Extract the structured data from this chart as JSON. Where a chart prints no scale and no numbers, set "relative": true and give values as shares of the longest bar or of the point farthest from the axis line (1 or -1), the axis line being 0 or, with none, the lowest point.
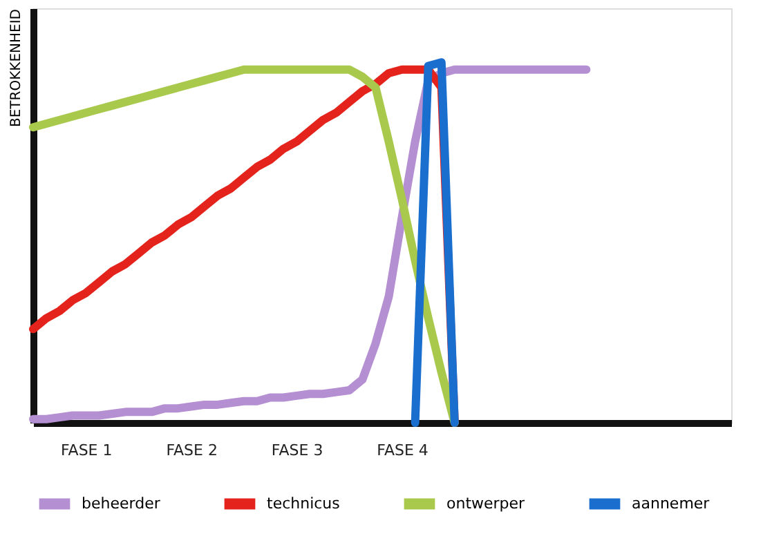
{
  "chart_data": {
    "type": "line",
    "relative": true,
    "ylabel": "BETROKKENHEID",
    "categories": [
      null,
      null,
      null,
      null,
      "FASE 1",
      null,
      null,
      null,
      null,
      null,
      null,
      null,
      "FASE 2",
      null,
      null,
      null,
      null,
      null,
      null,
      null,
      "FASE 3",
      null,
      null,
      null,
      null,
      null,
      null,
      null,
      "FASE 4",
      null,
      null,
      null,
      null,
      null,
      null,
      null,
      null,
      null,
      null,
      null,
      null,
      null,
      null,
      null,
      null,
      null,
      null,
      null,
      null,
      null,
      null,
      null,
      null,
      null
    ],
    "tick_labels": "x",
    "grid": false,
    "legend": "bottom",
    "marker": "none",
    "line_style": "solid",
    "series": [
      {
        "name": "beheerder",
        "color": "#b48fd2",
        "values": [
          0.01,
          0.01,
          0.015,
          0.02,
          0.02,
          0.02,
          0.025,
          0.03,
          0.03,
          0.03,
          0.04,
          0.04,
          0.045,
          0.05,
          0.05,
          0.055,
          0.06,
          0.06,
          0.07,
          0.07,
          0.075,
          0.08,
          0.08,
          0.085,
          0.09,
          0.12,
          0.22,
          0.35,
          0.57,
          0.78,
          0.95,
          0.97,
          0.98,
          0.98,
          0.98,
          0.98,
          0.98,
          0.98,
          0.98,
          0.98,
          0.98,
          0.98,
          0.98,
          null,
          null,
          null,
          null,
          null,
          null,
          null,
          null,
          null,
          null,
          null
        ]
      },
      {
        "name": "technicus",
        "color": "#e3231c",
        "values": [
          0.26,
          0.29,
          0.31,
          0.34,
          0.36,
          0.39,
          0.42,
          0.44,
          0.47,
          0.5,
          0.52,
          0.55,
          0.57,
          0.6,
          0.63,
          0.65,
          0.68,
          0.71,
          0.73,
          0.76,
          0.78,
          0.81,
          0.84,
          0.86,
          0.89,
          0.92,
          0.94,
          0.97,
          0.98,
          0.98,
          0.98,
          0.93,
          0,
          null,
          null,
          null,
          null,
          null,
          null,
          null,
          null,
          null,
          null,
          null,
          null,
          null,
          null,
          null,
          null,
          null,
          null,
          null,
          null,
          null
        ]
      },
      {
        "name": "ontwerper",
        "color": "#a9c94c",
        "values": [
          0.82,
          0.83,
          0.84,
          0.85,
          0.86,
          0.87,
          0.88,
          0.89,
          0.9,
          0.91,
          0.92,
          0.93,
          0.94,
          0.95,
          0.96,
          0.97,
          0.98,
          0.98,
          0.98,
          0.98,
          0.98,
          0.98,
          0.98,
          0.98,
          0.98,
          0.96,
          0.93,
          0.78,
          0.62,
          0.45,
          0.29,
          0.14,
          0,
          null,
          null,
          null,
          null,
          null,
          null,
          null,
          null,
          null,
          null,
          null,
          null,
          null,
          null,
          null,
          null,
          null,
          null,
          null,
          null,
          null
        ]
      },
      {
        "name": "aannemer",
        "color": "#1a6fce",
        "values": [
          null,
          null,
          null,
          null,
          null,
          null,
          null,
          null,
          null,
          null,
          null,
          null,
          null,
          null,
          null,
          null,
          null,
          null,
          null,
          null,
          null,
          null,
          null,
          null,
          null,
          null,
          null,
          null,
          null,
          0,
          0.99,
          1.0,
          0,
          null,
          null,
          null,
          null,
          null,
          null,
          null,
          null,
          null,
          null,
          null,
          null,
          null,
          null,
          null,
          null,
          null,
          null,
          null,
          null,
          null
        ]
      }
    ]
  }
}
